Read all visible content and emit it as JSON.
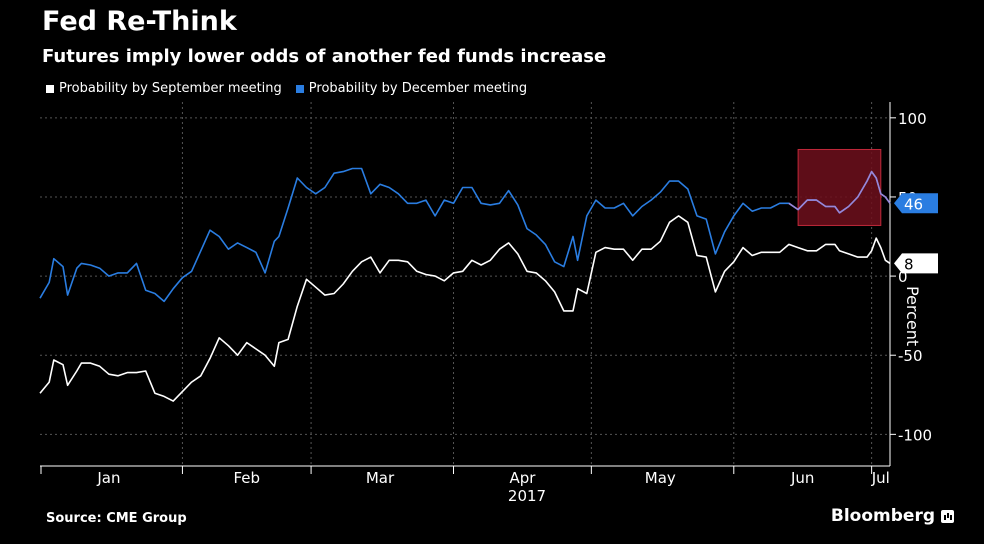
{
  "header": {
    "title": "Fed Re-Think",
    "subtitle": "Futures imply lower odds of another fed funds increase"
  },
  "footer": {
    "source": "Source: CME Group",
    "brand": "Bloomberg"
  },
  "colors": {
    "background": "#000000",
    "september": "#ffffff",
    "december": "#2a7de1",
    "highlight": "#6e0f1c",
    "highlight_border": "#c0283a",
    "grid": "#555555"
  },
  "icons": {
    "brand": "bloomberg-icon"
  },
  "chart_data": {
    "type": "line",
    "x_start": "2017-01-01",
    "x_end": "2017-07-05",
    "ylim": [
      -120,
      110
    ],
    "yticks": [
      100,
      50,
      0,
      -50,
      -100
    ],
    "ytick_labels": [
      "100",
      "50",
      "0",
      "-50",
      "-100"
    ],
    "ylabel": "Percent",
    "xlabel": "",
    "xticks": [
      {
        "label": "Jan",
        "date": "2017-01-16"
      },
      {
        "label": "Feb",
        "date": "2017-02-15"
      },
      {
        "label": "Mar",
        "date": "2017-03-16"
      },
      {
        "label": "Apr",
        "date": "2017-04-16"
      },
      {
        "label": "May",
        "date": "2017-05-16"
      },
      {
        "label": "Jun",
        "date": "2017-06-16"
      },
      {
        "label": "Jul",
        "date": "2017-07-03"
      }
    ],
    "year_label": "2017",
    "grid": true,
    "legend_position": "top-left",
    "highlight": {
      "x_start": "2017-06-15",
      "x_end": "2017-07-03",
      "y_min": 32,
      "y_max": 80
    },
    "series": [
      {
        "name": "Probability by September meeting",
        "color": "#ffffff",
        "last_label": "8",
        "points": [
          [
            "2017-01-01",
            -74
          ],
          [
            "2017-01-03",
            -67
          ],
          [
            "2017-01-04",
            -53
          ],
          [
            "2017-01-06",
            -56
          ],
          [
            "2017-01-07",
            -69
          ],
          [
            "2017-01-09",
            -60
          ],
          [
            "2017-01-10",
            -55
          ],
          [
            "2017-01-12",
            -55
          ],
          [
            "2017-01-14",
            -57
          ],
          [
            "2017-01-16",
            -62
          ],
          [
            "2017-01-18",
            -63
          ],
          [
            "2017-01-20",
            -61
          ],
          [
            "2017-01-22",
            -61
          ],
          [
            "2017-01-24",
            -60
          ],
          [
            "2017-01-26",
            -74
          ],
          [
            "2017-01-28",
            -76
          ],
          [
            "2017-01-30",
            -79
          ],
          [
            "2017-02-01",
            -73
          ],
          [
            "2017-02-03",
            -67
          ],
          [
            "2017-02-05",
            -63
          ],
          [
            "2017-02-07",
            -52
          ],
          [
            "2017-02-09",
            -39
          ],
          [
            "2017-02-11",
            -44
          ],
          [
            "2017-02-13",
            -50
          ],
          [
            "2017-02-15",
            -42
          ],
          [
            "2017-02-17",
            -46
          ],
          [
            "2017-02-19",
            -50
          ],
          [
            "2017-02-21",
            -57
          ],
          [
            "2017-02-22",
            -42
          ],
          [
            "2017-02-24",
            -40
          ],
          [
            "2017-02-26",
            -19
          ],
          [
            "2017-02-28",
            -2
          ],
          [
            "2017-03-02",
            -7
          ],
          [
            "2017-03-04",
            -12
          ],
          [
            "2017-03-06",
            -11
          ],
          [
            "2017-03-08",
            -5
          ],
          [
            "2017-03-10",
            3
          ],
          [
            "2017-03-12",
            9
          ],
          [
            "2017-03-14",
            12
          ],
          [
            "2017-03-16",
            2
          ],
          [
            "2017-03-18",
            10
          ],
          [
            "2017-03-20",
            10
          ],
          [
            "2017-03-22",
            9
          ],
          [
            "2017-03-24",
            3
          ],
          [
            "2017-03-26",
            1
          ],
          [
            "2017-03-28",
            0
          ],
          [
            "2017-03-30",
            -3
          ],
          [
            "2017-04-01",
            2
          ],
          [
            "2017-04-03",
            3
          ],
          [
            "2017-04-05",
            10
          ],
          [
            "2017-04-07",
            7
          ],
          [
            "2017-04-09",
            10
          ],
          [
            "2017-04-11",
            17
          ],
          [
            "2017-04-13",
            21
          ],
          [
            "2017-04-15",
            14
          ],
          [
            "2017-04-17",
            3
          ],
          [
            "2017-04-19",
            2
          ],
          [
            "2017-04-21",
            -3
          ],
          [
            "2017-04-23",
            -10
          ],
          [
            "2017-04-25",
            -22
          ],
          [
            "2017-04-27",
            -22
          ],
          [
            "2017-04-28",
            -8
          ],
          [
            "2017-04-30",
            -11
          ],
          [
            "2017-05-02",
            15
          ],
          [
            "2017-05-04",
            18
          ],
          [
            "2017-05-06",
            17
          ],
          [
            "2017-05-08",
            17
          ],
          [
            "2017-05-10",
            10
          ],
          [
            "2017-05-12",
            17
          ],
          [
            "2017-05-14",
            17
          ],
          [
            "2017-05-16",
            22
          ],
          [
            "2017-05-18",
            34
          ],
          [
            "2017-05-20",
            38
          ],
          [
            "2017-05-22",
            34
          ],
          [
            "2017-05-24",
            13
          ],
          [
            "2017-05-26",
            12
          ],
          [
            "2017-05-28",
            -10
          ],
          [
            "2017-05-30",
            3
          ],
          [
            "2017-06-01",
            9
          ],
          [
            "2017-06-03",
            18
          ],
          [
            "2017-06-05",
            13
          ],
          [
            "2017-06-07",
            15
          ],
          [
            "2017-06-09",
            15
          ],
          [
            "2017-06-11",
            15
          ],
          [
            "2017-06-13",
            20
          ],
          [
            "2017-06-15",
            18
          ],
          [
            "2017-06-17",
            16
          ],
          [
            "2017-06-19",
            16
          ],
          [
            "2017-06-21",
            20
          ],
          [
            "2017-06-23",
            20
          ],
          [
            "2017-06-24",
            16
          ],
          [
            "2017-06-26",
            14
          ],
          [
            "2017-06-28",
            12
          ],
          [
            "2017-06-30",
            12
          ],
          [
            "2017-07-01",
            16
          ],
          [
            "2017-07-02",
            24
          ],
          [
            "2017-07-03",
            18
          ],
          [
            "2017-07-04",
            10
          ],
          [
            "2017-07-05",
            8
          ]
        ]
      },
      {
        "name": "Probability by December meeting",
        "color": "#2a7de1",
        "last_label": "46",
        "points": [
          [
            "2017-01-01",
            -14
          ],
          [
            "2017-01-03",
            -4
          ],
          [
            "2017-01-04",
            11
          ],
          [
            "2017-01-06",
            6
          ],
          [
            "2017-01-07",
            -12
          ],
          [
            "2017-01-09",
            5
          ],
          [
            "2017-01-10",
            8
          ],
          [
            "2017-01-12",
            7
          ],
          [
            "2017-01-14",
            5
          ],
          [
            "2017-01-16",
            0
          ],
          [
            "2017-01-18",
            2
          ],
          [
            "2017-01-20",
            2
          ],
          [
            "2017-01-22",
            8
          ],
          [
            "2017-01-24",
            -9
          ],
          [
            "2017-01-26",
            -11
          ],
          [
            "2017-01-28",
            -16
          ],
          [
            "2017-01-30",
            -8
          ],
          [
            "2017-02-01",
            -1
          ],
          [
            "2017-02-03",
            3
          ],
          [
            "2017-02-05",
            16
          ],
          [
            "2017-02-07",
            29
          ],
          [
            "2017-02-09",
            25
          ],
          [
            "2017-02-11",
            17
          ],
          [
            "2017-02-13",
            21
          ],
          [
            "2017-02-15",
            18
          ],
          [
            "2017-02-17",
            15
          ],
          [
            "2017-02-19",
            2
          ],
          [
            "2017-02-21",
            22
          ],
          [
            "2017-02-22",
            25
          ],
          [
            "2017-02-24",
            43
          ],
          [
            "2017-02-26",
            62
          ],
          [
            "2017-02-28",
            56
          ],
          [
            "2017-03-02",
            52
          ],
          [
            "2017-03-04",
            56
          ],
          [
            "2017-03-06",
            65
          ],
          [
            "2017-03-08",
            66
          ],
          [
            "2017-03-10",
            68
          ],
          [
            "2017-03-12",
            68
          ],
          [
            "2017-03-14",
            52
          ],
          [
            "2017-03-16",
            58
          ],
          [
            "2017-03-18",
            56
          ],
          [
            "2017-03-20",
            52
          ],
          [
            "2017-03-22",
            46
          ],
          [
            "2017-03-24",
            46
          ],
          [
            "2017-03-26",
            48
          ],
          [
            "2017-03-28",
            38
          ],
          [
            "2017-03-30",
            48
          ],
          [
            "2017-04-01",
            46
          ],
          [
            "2017-04-03",
            56
          ],
          [
            "2017-04-05",
            56
          ],
          [
            "2017-04-07",
            46
          ],
          [
            "2017-04-09",
            45
          ],
          [
            "2017-04-11",
            46
          ],
          [
            "2017-04-13",
            54
          ],
          [
            "2017-04-15",
            45
          ],
          [
            "2017-04-17",
            30
          ],
          [
            "2017-04-19",
            26
          ],
          [
            "2017-04-21",
            20
          ],
          [
            "2017-04-23",
            9
          ],
          [
            "2017-04-25",
            6
          ],
          [
            "2017-04-27",
            25
          ],
          [
            "2017-04-28",
            10
          ],
          [
            "2017-04-30",
            38
          ],
          [
            "2017-05-02",
            48
          ],
          [
            "2017-05-04",
            43
          ],
          [
            "2017-05-06",
            43
          ],
          [
            "2017-05-08",
            46
          ],
          [
            "2017-05-10",
            38
          ],
          [
            "2017-05-12",
            44
          ],
          [
            "2017-05-14",
            48
          ],
          [
            "2017-05-16",
            53
          ],
          [
            "2017-05-18",
            60
          ],
          [
            "2017-05-20",
            60
          ],
          [
            "2017-05-22",
            55
          ],
          [
            "2017-05-24",
            38
          ],
          [
            "2017-05-26",
            36
          ],
          [
            "2017-05-28",
            14
          ],
          [
            "2017-05-30",
            28
          ],
          [
            "2017-06-01",
            38
          ],
          [
            "2017-06-03",
            46
          ],
          [
            "2017-06-05",
            41
          ],
          [
            "2017-06-07",
            43
          ],
          [
            "2017-06-09",
            43
          ],
          [
            "2017-06-11",
            46
          ],
          [
            "2017-06-13",
            46
          ],
          [
            "2017-06-15",
            42
          ],
          [
            "2017-06-17",
            48
          ],
          [
            "2017-06-19",
            48
          ],
          [
            "2017-06-21",
            44
          ],
          [
            "2017-06-23",
            44
          ],
          [
            "2017-06-24",
            40
          ],
          [
            "2017-06-26",
            44
          ],
          [
            "2017-06-28",
            50
          ],
          [
            "2017-06-30",
            60
          ],
          [
            "2017-07-01",
            66
          ],
          [
            "2017-07-02",
            62
          ],
          [
            "2017-07-03",
            52
          ],
          [
            "2017-07-04",
            50
          ],
          [
            "2017-07-05",
            46
          ]
        ]
      }
    ]
  }
}
